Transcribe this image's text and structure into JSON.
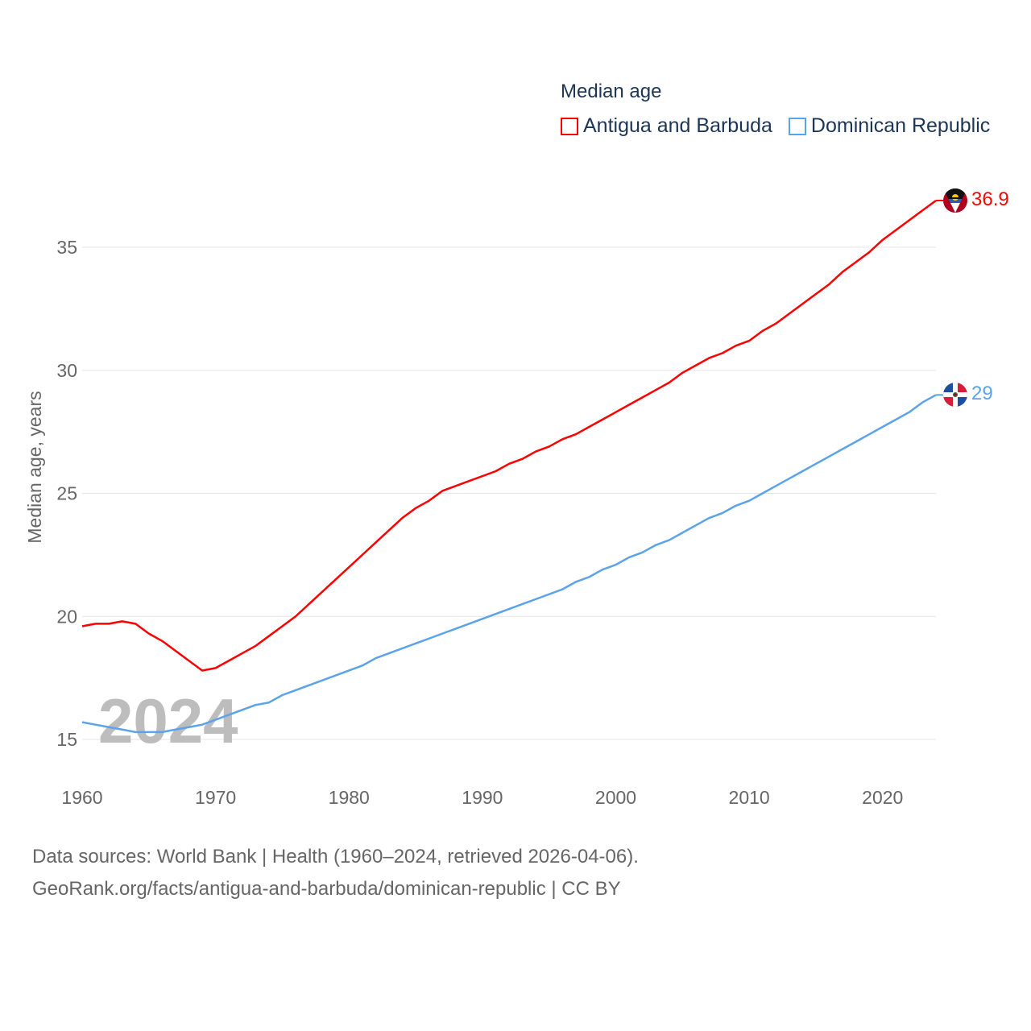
{
  "chart_data": {
    "type": "line",
    "title": "Median age",
    "xlabel": "",
    "ylabel": "Median age, years",
    "xlim": [
      1960,
      2024
    ],
    "ylim": [
      13.5,
      38
    ],
    "x_ticks": [
      1960,
      1970,
      1980,
      1990,
      2000,
      2010,
      2020
    ],
    "y_ticks": [
      15,
      20,
      25,
      30,
      35
    ],
    "grid": true,
    "legend_position": "top-right",
    "watermark_year": "2024",
    "x": [
      1960,
      1961,
      1962,
      1963,
      1964,
      1965,
      1966,
      1967,
      1968,
      1969,
      1970,
      1971,
      1972,
      1973,
      1974,
      1975,
      1976,
      1977,
      1978,
      1979,
      1980,
      1981,
      1982,
      1983,
      1984,
      1985,
      1986,
      1987,
      1988,
      1989,
      1990,
      1991,
      1992,
      1993,
      1994,
      1995,
      1996,
      1997,
      1998,
      1999,
      2000,
      2001,
      2002,
      2003,
      2004,
      2005,
      2006,
      2007,
      2008,
      2009,
      2010,
      2011,
      2012,
      2013,
      2014,
      2015,
      2016,
      2017,
      2018,
      2019,
      2020,
      2021,
      2022,
      2023,
      2024
    ],
    "series": [
      {
        "name": "Antigua and Barbuda",
        "color": "#ff0000",
        "end_label": "36.9",
        "values": [
          19.6,
          19.7,
          19.7,
          19.8,
          19.7,
          19.3,
          19.0,
          18.6,
          18.2,
          17.8,
          17.9,
          18.2,
          18.5,
          18.8,
          19.2,
          19.6,
          20.0,
          20.5,
          21.0,
          21.5,
          22.0,
          22.5,
          23.0,
          23.5,
          24.0,
          24.4,
          24.7,
          25.1,
          25.3,
          25.5,
          25.7,
          25.9,
          26.2,
          26.4,
          26.7,
          26.9,
          27.2,
          27.4,
          27.7,
          28.0,
          28.3,
          28.6,
          28.9,
          29.2,
          29.5,
          29.9,
          30.2,
          30.5,
          30.7,
          31.0,
          31.2,
          31.6,
          31.9,
          32.3,
          32.7,
          33.1,
          33.5,
          34.0,
          34.4,
          34.8,
          35.3,
          35.7,
          36.1,
          36.5,
          36.9
        ]
      },
      {
        "name": "Dominican Republic",
        "color": "#5ba3ea",
        "end_label": "29",
        "values": [
          15.7,
          15.6,
          15.5,
          15.4,
          15.3,
          15.3,
          15.3,
          15.4,
          15.5,
          15.6,
          15.8,
          16.0,
          16.2,
          16.4,
          16.5,
          16.8,
          17.0,
          17.2,
          17.4,
          17.6,
          17.8,
          18.0,
          18.3,
          18.5,
          18.7,
          18.9,
          19.1,
          19.3,
          19.5,
          19.7,
          19.9,
          20.1,
          20.3,
          20.5,
          20.7,
          20.9,
          21.1,
          21.4,
          21.6,
          21.9,
          22.1,
          22.4,
          22.6,
          22.9,
          23.1,
          23.4,
          23.7,
          24.0,
          24.2,
          24.5,
          24.7,
          25.0,
          25.3,
          25.6,
          25.9,
          26.2,
          26.5,
          26.8,
          27.1,
          27.4,
          27.7,
          28.0,
          28.3,
          28.7,
          29.0
        ]
      }
    ]
  },
  "footer": {
    "line1": "Data sources: World Bank | Health (1960–2024, retrieved 2026-04-06).",
    "line2": "GeoRank.org/facts/antigua-and-barbuda/dominican-republic | CC BY"
  }
}
